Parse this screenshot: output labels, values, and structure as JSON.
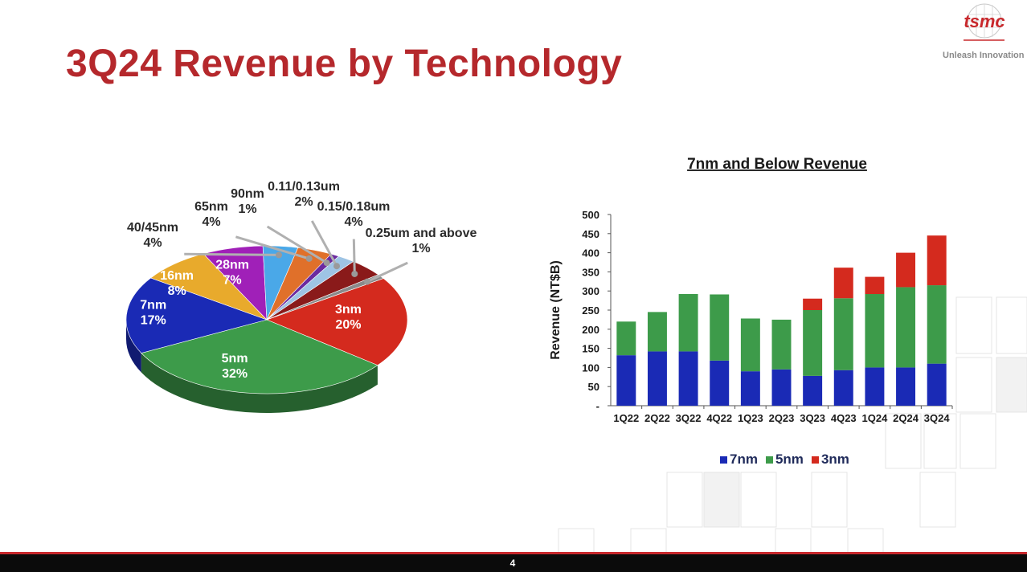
{
  "slide": {
    "title": "3Q24 Revenue by Technology",
    "logo_text": "tsmc",
    "tagline": "Unleash Innovation",
    "page_number": "4"
  },
  "colors": {
    "title": "#b5282c",
    "7nm": "#1a2ab5",
    "5nm": "#3d9b4a",
    "3nm": "#d42a1e"
  },
  "chart_data": [
    {
      "type": "pie",
      "title": "",
      "slices": [
        {
          "label": "3nm",
          "value": 20,
          "pct_label": "20%",
          "color": "#d42a1e"
        },
        {
          "label": "5nm",
          "value": 32,
          "pct_label": "32%",
          "color": "#3d9b4a"
        },
        {
          "label": "7nm",
          "value": 17,
          "pct_label": "17%",
          "color": "#1a2ab5"
        },
        {
          "label": "16nm",
          "value": 8,
          "pct_label": "8%",
          "color": "#e8aa2c"
        },
        {
          "label": "28nm",
          "value": 7,
          "pct_label": "7%",
          "color": "#a020b8"
        },
        {
          "label": "40/45nm",
          "value": 4,
          "pct_label": "4%",
          "color": "#4aa8e8"
        },
        {
          "label": "65nm",
          "value": 4,
          "pct_label": "4%",
          "color": "#e0702a"
        },
        {
          "label": "90nm",
          "value": 1,
          "pct_label": "1%",
          "color": "#6b2aa0"
        },
        {
          "label": "0.11/0.13um",
          "value": 2,
          "pct_label": "2%",
          "color": "#9ec4e4"
        },
        {
          "label": "0.15/0.18um",
          "value": 4,
          "pct_label": "4%",
          "color": "#8a1a1a"
        },
        {
          "label": "0.25um and above",
          "value": 1,
          "pct_label": "1%",
          "color": "#8a8a8a"
        }
      ]
    },
    {
      "type": "bar",
      "stacked": true,
      "title": "7nm and Below Revenue",
      "ylabel": "Revenue (NT$B)",
      "xlabel": "",
      "ylim": [
        0,
        500
      ],
      "yticks": [
        "-",
        "50",
        "100",
        "150",
        "200",
        "250",
        "300",
        "350",
        "400",
        "450",
        "500"
      ],
      "categories": [
        "1Q22",
        "2Q22",
        "3Q22",
        "4Q22",
        "1Q23",
        "2Q23",
        "3Q23",
        "4Q23",
        "1Q24",
        "2Q24",
        "3Q24"
      ],
      "series": [
        {
          "name": "7nm",
          "color": "#1a2ab5",
          "values": [
            132,
            142,
            142,
            118,
            90,
            95,
            78,
            93,
            100,
            100,
            110
          ]
        },
        {
          "name": "5nm",
          "color": "#3d9b4a",
          "values": [
            88,
            103,
            150,
            173,
            138,
            130,
            172,
            188,
            192,
            210,
            205
          ]
        },
        {
          "name": "3nm",
          "color": "#d42a1e",
          "values": [
            0,
            0,
            0,
            0,
            0,
            0,
            30,
            80,
            45,
            90,
            130
          ]
        }
      ],
      "legend": "bottom"
    }
  ]
}
